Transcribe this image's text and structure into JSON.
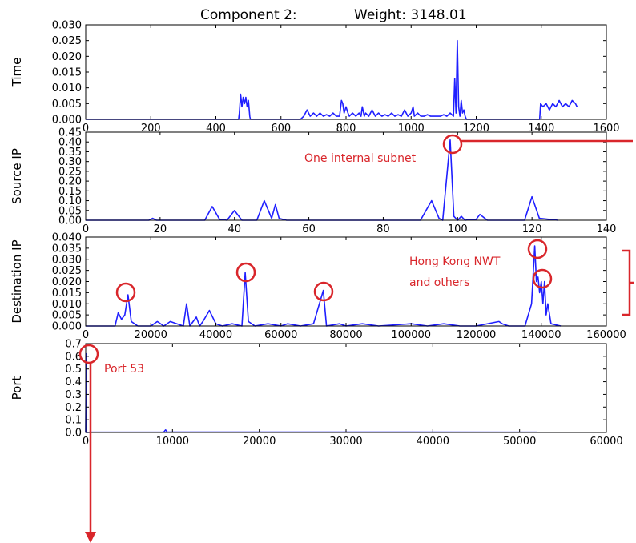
{
  "title": {
    "component": "Component 2:",
    "weight": "Weight: 3148.01"
  },
  "annotations": {
    "source_ip": "One internal subnet",
    "dest_ip_line1": "Hong Kong NWT",
    "dest_ip_line2": "and others",
    "port": "Port 53"
  },
  "colors": {
    "series": "#1f1fff",
    "annotation": "#d9262b"
  },
  "chart_data": [
    {
      "type": "line",
      "ylabel": "Time",
      "xlim": [
        0,
        1600
      ],
      "ylim": [
        0,
        0.03
      ],
      "xticks": [
        "0",
        "200",
        "400",
        "600",
        "800",
        "1000",
        "1200",
        "1400",
        "1600"
      ],
      "yticks": [
        "0.000",
        "0.005",
        "0.010",
        "0.015",
        "0.020",
        "0.025",
        "0.030"
      ],
      "x": [
        0,
        460,
        470,
        472,
        476,
        480,
        484,
        488,
        492,
        496,
        500,
        504,
        506,
        510,
        520,
        540,
        560,
        580,
        600,
        640,
        660,
        670,
        680,
        690,
        700,
        710,
        720,
        730,
        740,
        750,
        760,
        770,
        780,
        786,
        790,
        794,
        800,
        806,
        810,
        820,
        830,
        840,
        846,
        850,
        856,
        860,
        870,
        880,
        890,
        900,
        910,
        920,
        930,
        940,
        950,
        960,
        970,
        980,
        990,
        1000,
        1006,
        1010,
        1020,
        1030,
        1040,
        1050,
        1060,
        1070,
        1080,
        1090,
        1100,
        1110,
        1120,
        1130,
        1134,
        1138,
        1142,
        1146,
        1150,
        1154,
        1158,
        1162,
        1166,
        1170,
        1180,
        1190,
        1200,
        1260,
        1380,
        1395,
        1398,
        1405,
        1415,
        1425,
        1435,
        1445,
        1455,
        1465,
        1475,
        1485,
        1495,
        1505,
        1510
      ],
      "y": [
        0,
        0,
        0,
        0.002,
        0.008,
        0.004,
        0.007,
        0.005,
        0.007,
        0.004,
        0.006,
        0.001,
        0,
        0,
        0,
        0,
        0,
        0,
        0,
        0,
        0,
        0.001,
        0.003,
        0.001,
        0.002,
        0.001,
        0.002,
        0.001,
        0.0015,
        0.001,
        0.002,
        0.001,
        0.001,
        0.006,
        0.005,
        0.002,
        0.004,
        0.002,
        0.001,
        0.002,
        0.001,
        0.002,
        0.001,
        0.004,
        0.001,
        0.002,
        0.001,
        0.003,
        0.001,
        0.002,
        0.001,
        0.0015,
        0.001,
        0.002,
        0.001,
        0.0015,
        0.001,
        0.003,
        0.001,
        0.002,
        0.004,
        0.001,
        0.002,
        0.001,
        0.001,
        0.0015,
        0.001,
        0.001,
        0.001,
        0.001,
        0.0015,
        0.001,
        0.002,
        0.001,
        0.013,
        0.002,
        0.025,
        0.004,
        0.001,
        0.006,
        0.002,
        0.003,
        0.001,
        0,
        0,
        0,
        0,
        0,
        0,
        0,
        0.005,
        0.004,
        0.005,
        0.003,
        0.005,
        0.004,
        0.006,
        0.004,
        0.005,
        0.004,
        0.006,
        0.005,
        0.004
      ]
    },
    {
      "type": "line",
      "ylabel": "Source IP",
      "xlim": [
        0,
        140
      ],
      "ylim": [
        0,
        0.45
      ],
      "xticks": [
        "0",
        "20",
        "40",
        "60",
        "80",
        "100",
        "120",
        "140"
      ],
      "yticks": [
        "0.00",
        "0.05",
        "0.10",
        "0.15",
        "0.20",
        "0.25",
        "0.30",
        "0.35",
        "0.40",
        "0.45"
      ],
      "x": [
        0,
        17,
        18,
        19,
        32,
        34,
        36,
        38,
        40,
        42,
        46,
        48,
        50,
        51,
        52,
        54,
        90,
        93,
        95,
        96,
        98,
        99,
        100,
        101,
        102,
        104,
        105,
        106,
        108,
        118,
        120,
        122,
        127
      ],
      "y": [
        0,
        0,
        0.01,
        0,
        0,
        0.07,
        0.005,
        0,
        0.05,
        0,
        0,
        0.1,
        0.01,
        0.08,
        0.01,
        0,
        0,
        0.1,
        0.01,
        0,
        0.41,
        0.02,
        0,
        0.02,
        0,
        0.005,
        0.005,
        0.03,
        0,
        0,
        0.12,
        0.01,
        0
      ]
    },
    {
      "type": "line",
      "ylabel": "Destination IP",
      "xlim": [
        0,
        160000
      ],
      "ylim": [
        0,
        0.04
      ],
      "xticks": [
        "0",
        "20000",
        "40000",
        "60000",
        "80000",
        "100000",
        "120000",
        "140000",
        "160000"
      ],
      "yticks": [
        "0.000",
        "0.005",
        "0.010",
        "0.015",
        "0.020",
        "0.025",
        "0.030",
        "0.035",
        "0.040"
      ],
      "x": [
        0,
        5000,
        9000,
        10000,
        11000,
        12000,
        13000,
        14000,
        15000,
        16000,
        20000,
        22000,
        24000,
        26000,
        28000,
        30000,
        31000,
        32000,
        34000,
        35000,
        36000,
        38000,
        40000,
        42000,
        45000,
        48000,
        49000,
        50000,
        52000,
        56000,
        60000,
        62000,
        66000,
        70000,
        73000,
        74000,
        78000,
        80000,
        85000,
        90000,
        100000,
        105000,
        110000,
        115000,
        120000,
        127000,
        128000,
        130000,
        135000,
        137000,
        138000,
        138500,
        139000,
        139500,
        140000,
        140500,
        141000,
        141500,
        142000,
        143000,
        146000
      ],
      "y": [
        0,
        0,
        0,
        0.006,
        0.003,
        0.005,
        0.014,
        0.002,
        0.001,
        0,
        0,
        0.002,
        0,
        0.002,
        0.001,
        0,
        0.01,
        0,
        0.004,
        0,
        0.002,
        0.007,
        0.001,
        0,
        0.001,
        0,
        0.024,
        0.002,
        0,
        0.001,
        0,
        0.001,
        0,
        0.001,
        0.016,
        0,
        0.001,
        0,
        0.001,
        0,
        0.001,
        0,
        0.001,
        0,
        0,
        0.002,
        0.001,
        0,
        0,
        0.01,
        0.036,
        0.02,
        0.022,
        0.015,
        0.02,
        0.01,
        0.02,
        0.005,
        0.01,
        0.001,
        0
      ]
    },
    {
      "type": "line",
      "ylabel": "Port",
      "xlim": [
        0,
        60000
      ],
      "ylim": [
        0,
        0.7
      ],
      "xticks": [
        "0",
        "10000",
        "20000",
        "30000",
        "40000",
        "50000",
        "60000"
      ],
      "yticks": [
        "0.0",
        "0.1",
        "0.2",
        "0.3",
        "0.4",
        "0.5",
        "0.6",
        "0.7"
      ],
      "x": [
        0,
        53,
        54,
        500,
        9000,
        9200,
        9400,
        20000,
        35000,
        52000
      ],
      "y": [
        0,
        0.62,
        0,
        0.002,
        0.003,
        0.02,
        0.003,
        0.003,
        0.003,
        0.002
      ]
    }
  ]
}
